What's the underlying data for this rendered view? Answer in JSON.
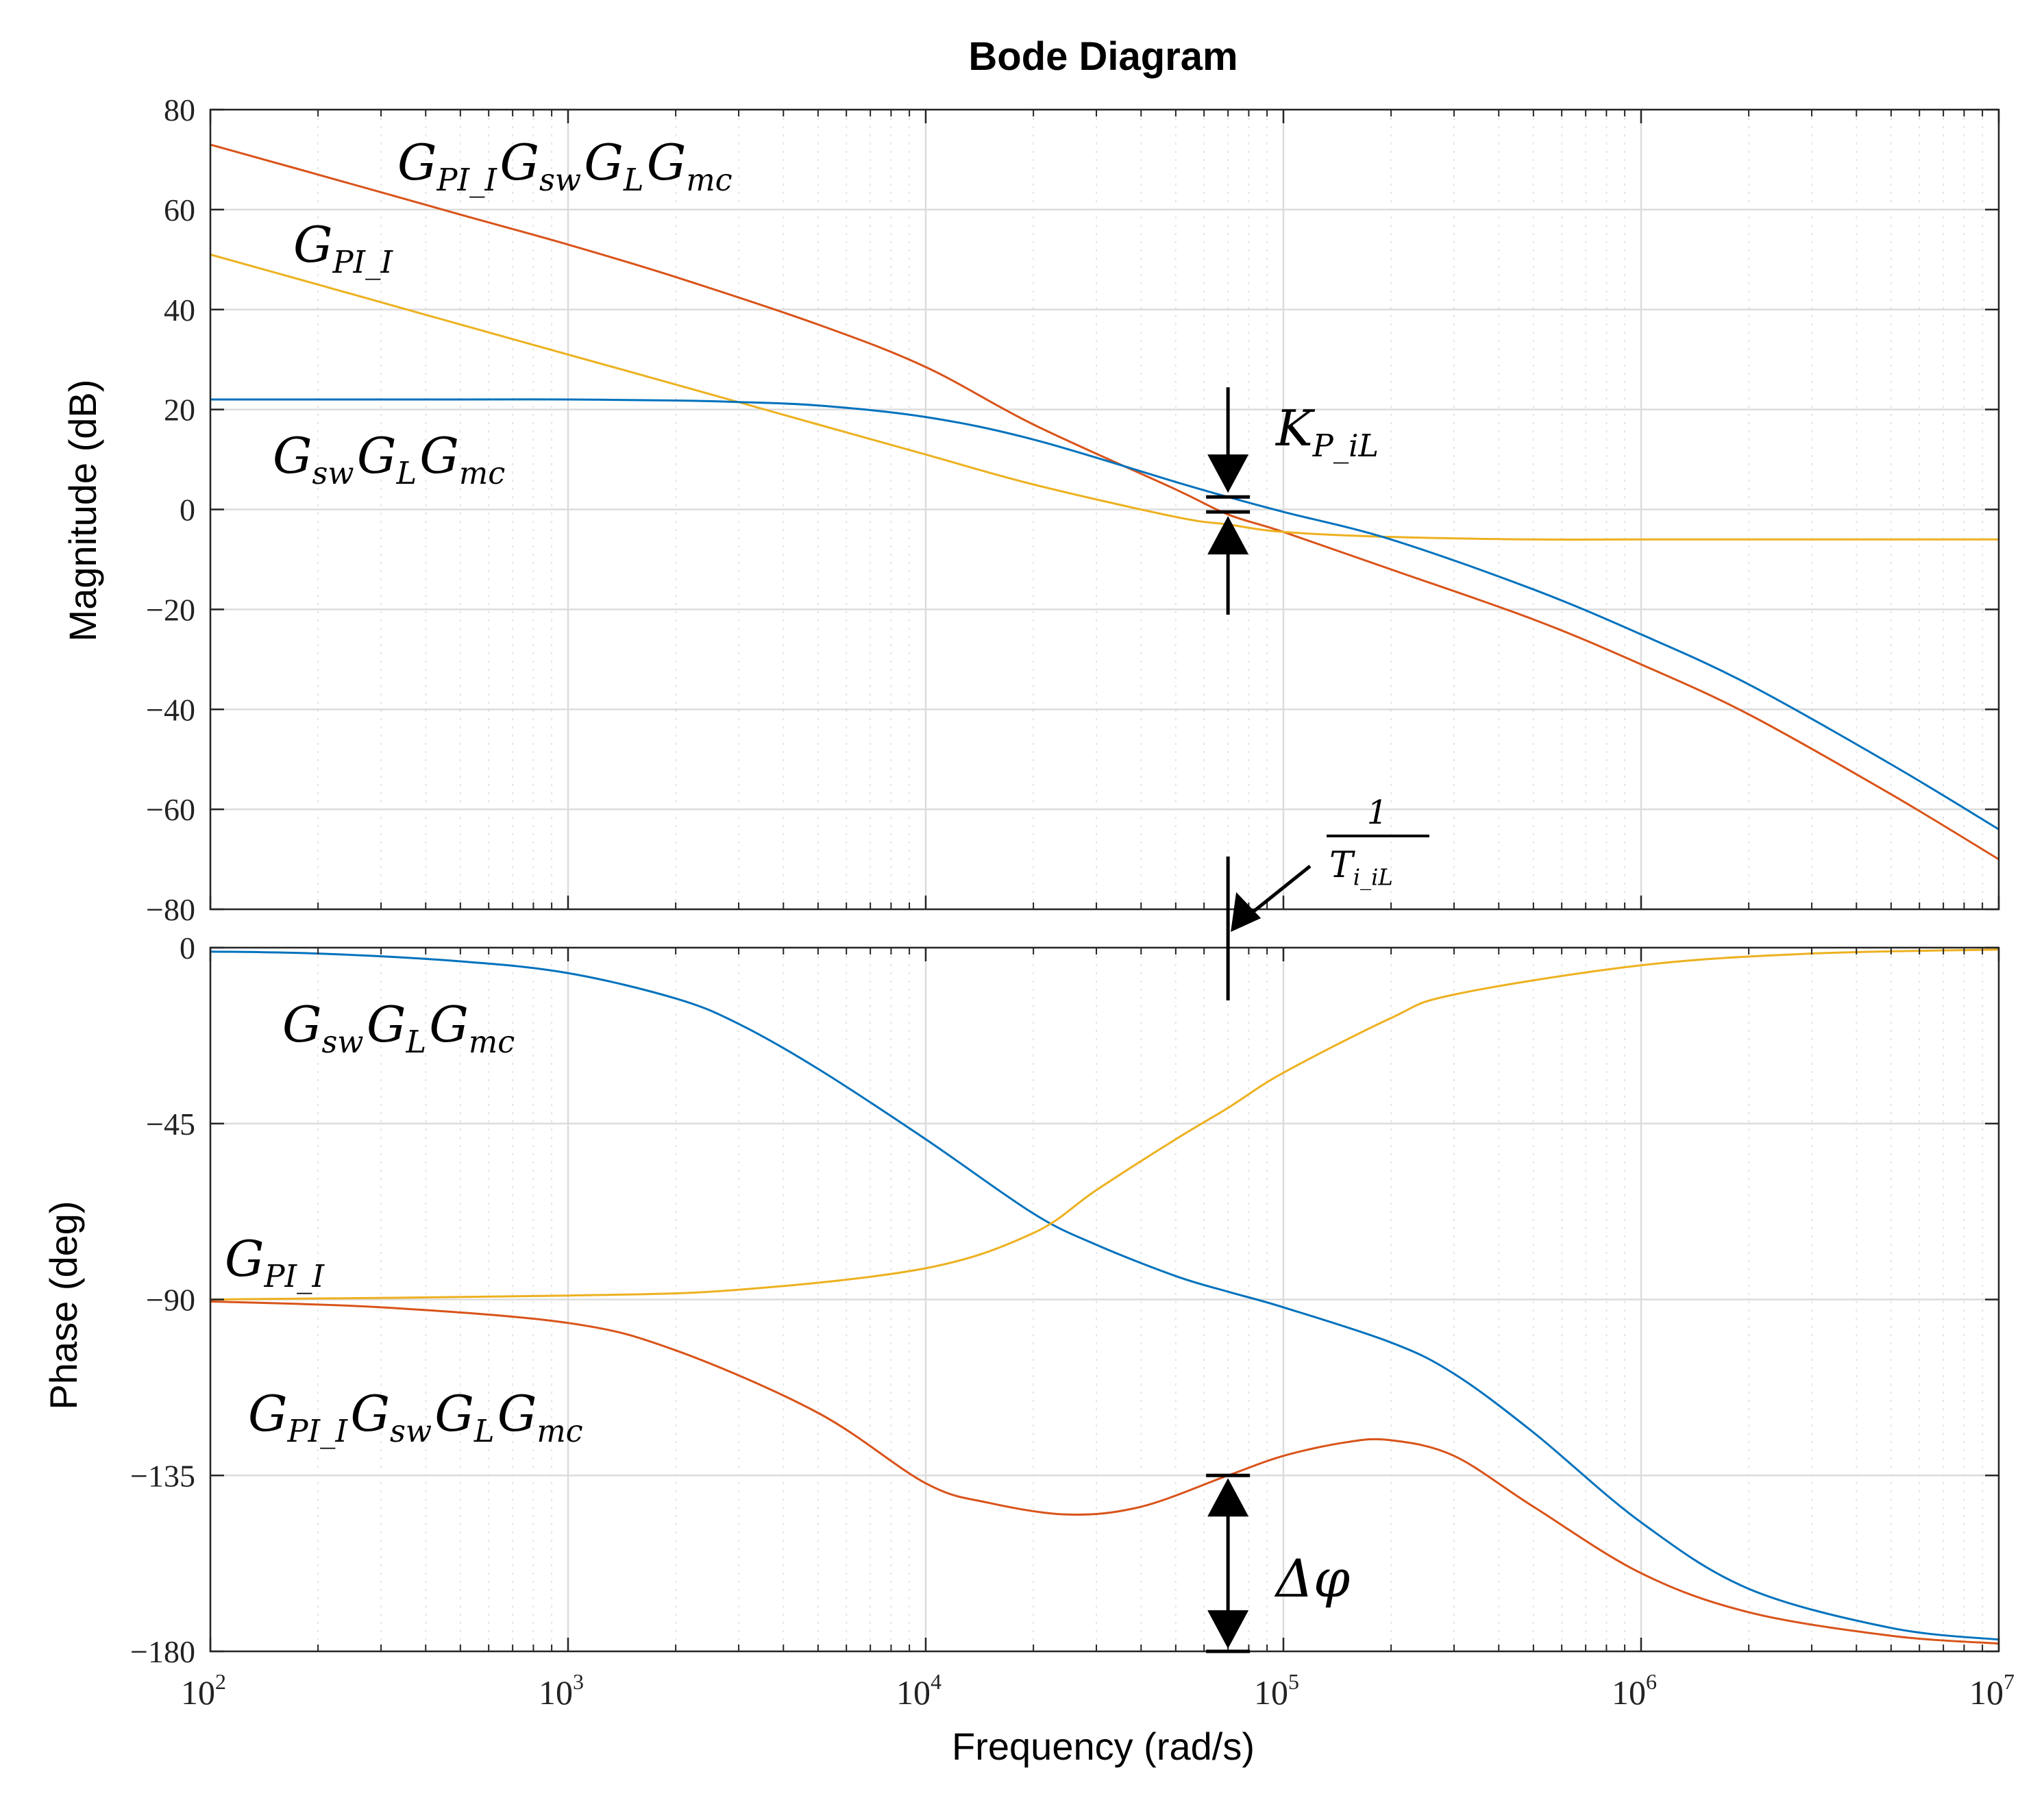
{
  "figure": {
    "title": "Bode Diagram",
    "xlabel": "Frequency  (rad/s)"
  },
  "colors": {
    "plant": "#0072BD",
    "loop": "#D95319",
    "pi": "#EDB120",
    "grid_major": "#dcdcdc",
    "grid_minor": "#e4e4e4",
    "annotation": "#000000"
  },
  "chart_data": [
    {
      "id": "magnitude",
      "type": "line",
      "xscale": "log",
      "xlim": [
        100,
        10000000
      ],
      "ylim": [
        -80,
        80
      ],
      "ylabel": "Magnitude (dB)",
      "yticks": [
        80,
        60,
        40,
        20,
        0,
        -20,
        -40,
        -60,
        -80
      ],
      "ytick_labels": [
        "80",
        "60",
        "40",
        "20",
        "0",
        "−20",
        "−40",
        "−60",
        "−80"
      ],
      "x_decades": [
        2,
        3,
        4,
        5,
        6,
        7
      ],
      "x_tick_base": "10",
      "grid": true,
      "series": [
        {
          "name": "G_PI_I G_sw G_L G_mc",
          "color_key": "loop",
          "x": [
            100,
            200,
            500,
            1000,
            2000,
            5000,
            10000,
            20000,
            50000,
            70000,
            100000,
            200000,
            500000,
            1000000,
            2000000,
            5000000,
            10000000
          ],
          "y": [
            73,
            67,
            59,
            53,
            46.5,
            37,
            28.5,
            17,
            4,
            -1,
            -4.5,
            -12,
            -22,
            -31,
            -41,
            -57,
            -70
          ]
        },
        {
          "name": "G_PI_I",
          "color_key": "pi",
          "x": [
            100,
            200,
            500,
            1000,
            2000,
            5000,
            10000,
            20000,
            50000,
            70000,
            100000,
            200000,
            500000,
            1000000,
            10000000
          ],
          "y": [
            51,
            45,
            37,
            31,
            25,
            17,
            11,
            5,
            -1.5,
            -3,
            -4.5,
            -5.5,
            -6,
            -6,
            -6
          ]
        },
        {
          "name": "G_sw G_L G_mc",
          "color_key": "plant",
          "x": [
            100,
            200,
            500,
            1000,
            2000,
            3000,
            5000,
            10000,
            20000,
            50000,
            70000,
            100000,
            200000,
            500000,
            1000000,
            2000000,
            5000000,
            10000000
          ],
          "y": [
            22,
            22,
            22,
            22,
            21.8,
            21.5,
            20.8,
            18.5,
            14,
            5.5,
            2.5,
            -0.5,
            -6,
            -16,
            -25,
            -35,
            -51,
            -64
          ]
        }
      ],
      "labels": [
        {
          "symbol": "G",
          "sub": "PI_I",
          "after": [
            {
              "symbol": "G",
              "sub": "sw"
            },
            {
              "symbol": "G",
              "sub": "L"
            },
            {
              "symbol": "G",
              "sub": "mc"
            }
          ],
          "color_key": "loop"
        },
        {
          "symbol": "G",
          "sub": "PI_I",
          "after": [],
          "color_key": "pi"
        },
        {
          "symbol": "G",
          "sub": "sw",
          "after": [
            {
              "symbol": "G",
              "sub": "L"
            },
            {
              "symbol": "G",
              "sub": "mc"
            }
          ],
          "color_key": "plant"
        }
      ],
      "annotations": {
        "gain": {
          "frequency": 70000,
          "from_db": 2.5,
          "to_db": -0.5,
          "symbol": "K",
          "sub": "P_iL"
        },
        "integral": {
          "frequency": 70000,
          "numerator": "1",
          "denominator": "T",
          "denominator_sub": "i_iL"
        }
      }
    },
    {
      "id": "phase",
      "type": "line",
      "xscale": "log",
      "xlim": [
        100,
        10000000
      ],
      "ylim": [
        -180,
        0
      ],
      "ylabel": "Phase (deg)",
      "yticks": [
        0,
        -45,
        -90,
        -135,
        -180
      ],
      "ytick_labels": [
        "0",
        "−45",
        "−90",
        "−135",
        "−180"
      ],
      "x_decades": [
        2,
        3,
        4,
        5,
        6,
        7
      ],
      "x_tick_base": "10",
      "grid": true,
      "series": [
        {
          "name": "G_sw G_L G_mc",
          "color_key": "plant",
          "x": [
            100,
            200,
            500,
            1000,
            2000,
            3000,
            5000,
            10000,
            20000,
            30000,
            50000,
            70000,
            100000,
            200000,
            300000,
            500000,
            1000000,
            2000000,
            5000000,
            10000000
          ],
          "y": [
            -1,
            -1.5,
            -3.5,
            -6.5,
            -13,
            -19.5,
            -31,
            -49,
            -68,
            -76,
            -84,
            -88,
            -92,
            -101,
            -109,
            -124,
            -147,
            -164,
            -174,
            -177
          ]
        },
        {
          "name": "G_PI_I",
          "color_key": "pi",
          "x": [
            100,
            1000,
            3000,
            10000,
            20000,
            30000,
            50000,
            70000,
            100000,
            200000,
            300000,
            1000000,
            3000000,
            10000000
          ],
          "y": [
            -90,
            -89,
            -87.5,
            -82,
            -73,
            -62,
            -49,
            -41,
            -32,
            -18,
            -12,
            -4.5,
            -1.5,
            -0.5
          ]
        },
        {
          "name": "G_PI_I G_sw G_L G_mc",
          "color_key": "loop",
          "x": [
            100,
            300,
            1000,
            2000,
            5000,
            10000,
            15000,
            25000,
            40000,
            70000,
            100000,
            150000,
            200000,
            300000,
            500000,
            1000000,
            2000000,
            5000000,
            10000000
          ],
          "y": [
            -90.5,
            -92,
            -96,
            -103,
            -119,
            -137,
            -142,
            -145,
            -143,
            -135,
            -130,
            -126.5,
            -126,
            -130,
            -143,
            -160,
            -170,
            -176,
            -178
          ]
        }
      ],
      "labels": [
        {
          "symbol": "G",
          "sub": "sw",
          "after": [
            {
              "symbol": "G",
              "sub": "L"
            },
            {
              "symbol": "G",
              "sub": "mc"
            }
          ],
          "color_key": "plant"
        },
        {
          "symbol": "G",
          "sub": "PI_I",
          "after": [],
          "color_key": "pi"
        },
        {
          "symbol": "G",
          "sub": "PI_I",
          "after": [
            {
              "symbol": "G",
              "sub": "sw"
            },
            {
              "symbol": "G",
              "sub": "L"
            },
            {
              "symbol": "G",
              "sub": "mc"
            }
          ],
          "color_key": "loop"
        }
      ],
      "annotations": {
        "phase_margin": {
          "frequency": 70000,
          "from_deg": -135,
          "to_deg": -180,
          "symbol": "Δφ"
        }
      }
    }
  ]
}
